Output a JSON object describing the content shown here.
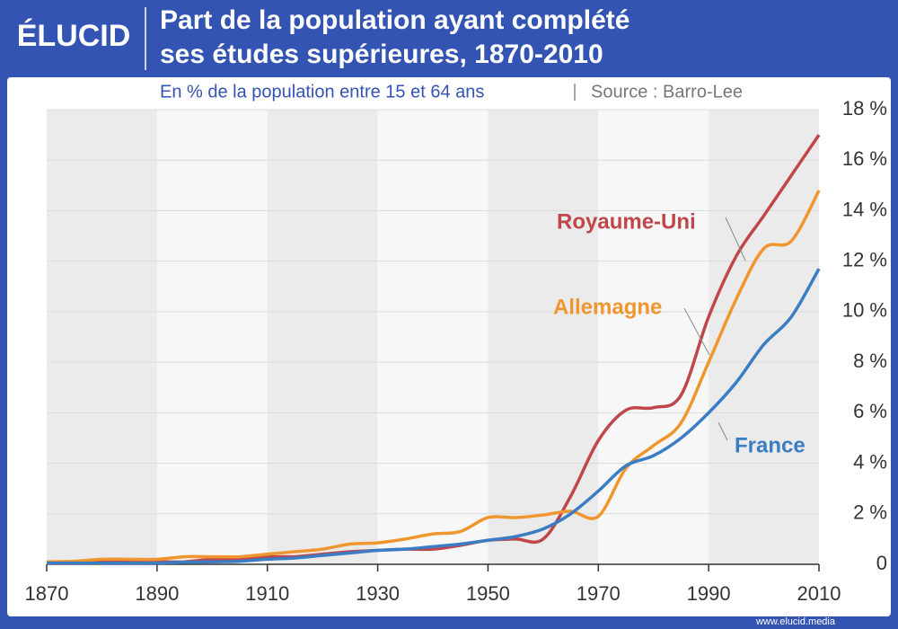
{
  "brand": "ÉLUCID",
  "footer": "www.elucid.media",
  "chart_data": {
    "type": "line",
    "title": "Part de la population ayant complété ses études supérieures, 1870-2010",
    "subtitle": "En % de la population entre 15 et 64 ans",
    "source": "Source : Barro-Lee",
    "x": [
      1870,
      1875,
      1880,
      1885,
      1890,
      1895,
      1900,
      1905,
      1910,
      1915,
      1920,
      1925,
      1930,
      1935,
      1940,
      1945,
      1950,
      1955,
      1960,
      1965,
      1970,
      1975,
      1980,
      1985,
      1990,
      1995,
      2000,
      2005,
      2010
    ],
    "series": [
      {
        "name": "Royaume-Uni",
        "color": "#c0464a",
        "values": [
          0.05,
          0.05,
          0.1,
          0.1,
          0.1,
          0.1,
          0.2,
          0.2,
          0.3,
          0.3,
          0.4,
          0.5,
          0.55,
          0.6,
          0.6,
          0.75,
          0.95,
          1.0,
          1.0,
          2.7,
          4.9,
          6.1,
          6.2,
          6.7,
          9.8,
          12.2,
          13.8,
          15.4,
          17.0
        ]
      },
      {
        "name": "Allemagne",
        "color": "#f0962e",
        "values": [
          0.1,
          0.12,
          0.2,
          0.2,
          0.2,
          0.3,
          0.3,
          0.3,
          0.4,
          0.5,
          0.6,
          0.8,
          0.85,
          1.0,
          1.2,
          1.3,
          1.85,
          1.85,
          1.95,
          2.1,
          1.9,
          3.8,
          4.7,
          5.6,
          8.0,
          10.5,
          12.5,
          12.8,
          14.8
        ]
      },
      {
        "name": "France",
        "color": "#3b7dc4",
        "values": [
          0.05,
          0.05,
          0.05,
          0.05,
          0.05,
          0.08,
          0.1,
          0.12,
          0.2,
          0.25,
          0.35,
          0.45,
          0.55,
          0.6,
          0.7,
          0.8,
          0.95,
          1.1,
          1.4,
          2.0,
          2.9,
          3.9,
          4.3,
          5.0,
          6.0,
          7.2,
          8.7,
          9.8,
          11.7
        ]
      }
    ],
    "xlim": [
      1870,
      2010
    ],
    "xticks": [
      1870,
      1890,
      1910,
      1930,
      1950,
      1970,
      1990,
      2010
    ],
    "ylim": [
      0,
      18
    ],
    "yticks": [
      0,
      {
        "value": 2,
        "label": "2 %"
      },
      {
        "value": 4,
        "label": "4 %"
      },
      {
        "value": 6,
        "label": "6 %"
      },
      {
        "value": 8,
        "label": "8 %"
      },
      {
        "value": 10,
        "label": "10 %"
      },
      {
        "value": 12,
        "label": "12 %"
      },
      {
        "value": 14,
        "label": "14 %"
      },
      {
        "value": 16,
        "label": "16 %"
      },
      {
        "value": 18,
        "label": "18 %"
      }
    ],
    "grid": true
  }
}
